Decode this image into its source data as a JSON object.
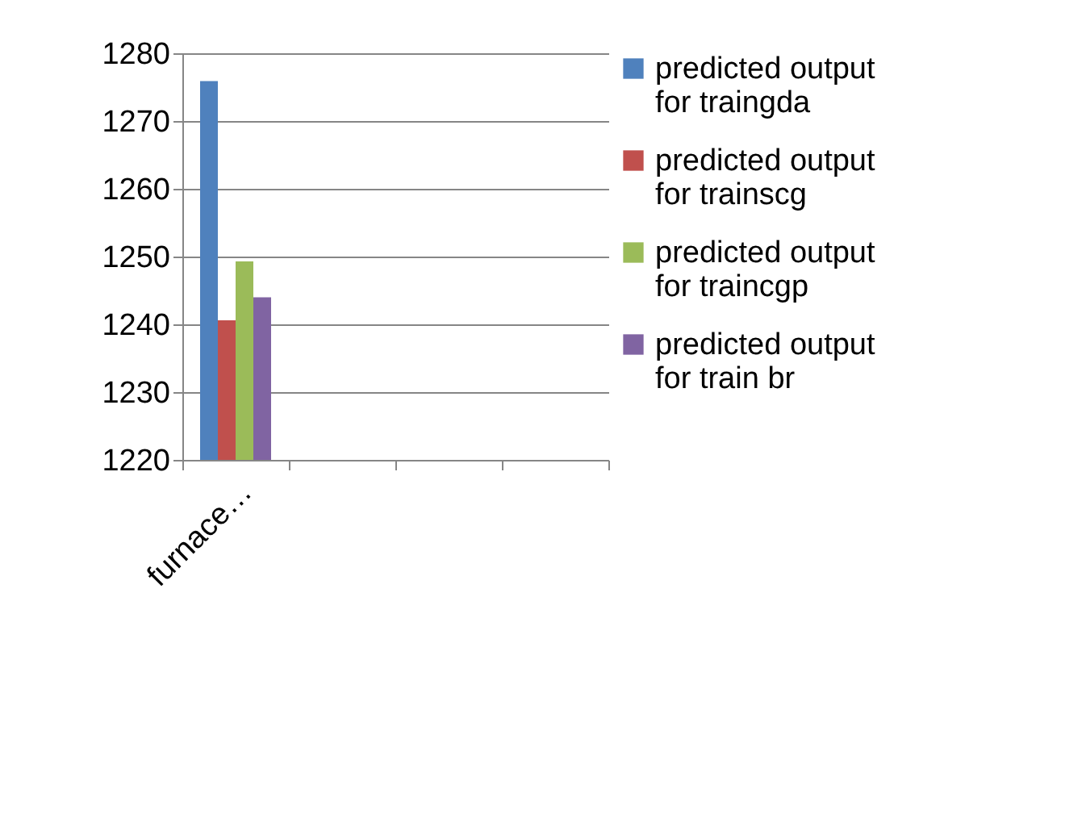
{
  "chart_data": {
    "type": "bar",
    "categories": [
      "furnace…",
      null,
      null,
      null
    ],
    "series": [
      {
        "name": "predicted output for traingda",
        "color": "#4f81bd",
        "values": [
          1275.9,
          null,
          null,
          null
        ]
      },
      {
        "name": "predicted output for trainscg",
        "color": "#c0504d",
        "values": [
          1240.6,
          null,
          null,
          null
        ]
      },
      {
        "name": "predicted output for traincgp",
        "color": "#9bbb59",
        "values": [
          1249.3,
          null,
          null,
          null
        ]
      },
      {
        "name": "predicted output for train br",
        "color": "#8064a2",
        "values": [
          1244.0,
          null,
          null,
          null
        ]
      }
    ],
    "ylim": [
      1220,
      1280
    ],
    "yticks": [
      1220,
      1230,
      1240,
      1250,
      1260,
      1270,
      1280
    ],
    "grid": "y",
    "legend": "right"
  }
}
